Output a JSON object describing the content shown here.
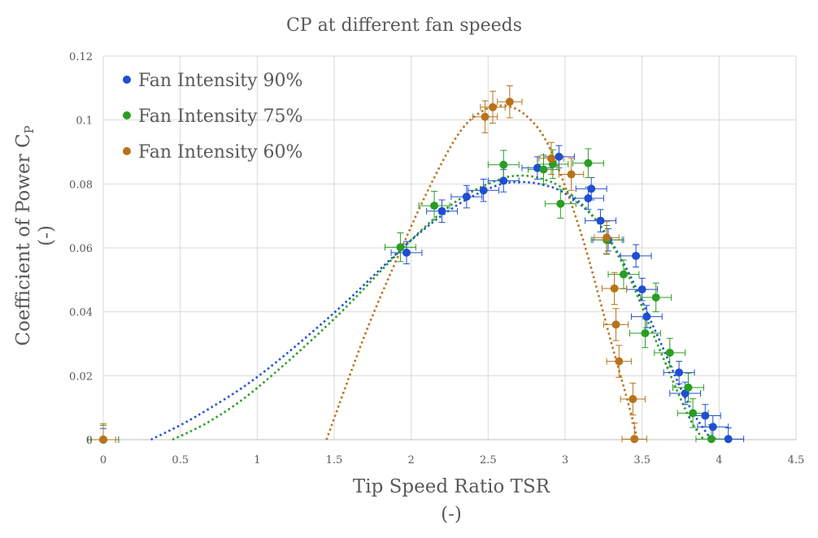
{
  "chart_data": {
    "type": "scatter",
    "title": "CP at different fan speeds",
    "xlabel": "Tip Speed Ratio TSR",
    "xlabel_unit": "(-)",
    "ylabel": "Coefficient of Power C",
    "ylabel_subscript": "P",
    "ylabel_unit": "(-)",
    "xlim": [
      0,
      4.5
    ],
    "ylim": [
      0,
      0.12
    ],
    "x_ticks": [
      "0",
      "0.5",
      "1",
      "1.5",
      "2",
      "2.5",
      "3",
      "3.5",
      "4",
      "4.5"
    ],
    "y_ticks": [
      "0",
      "0.02",
      "0.04",
      "0.06",
      "0.08",
      "0.1",
      "0.12"
    ],
    "grid": true,
    "legend_position": "top-left",
    "trendline_style": "dotted",
    "series": [
      {
        "name": "Fan Intensity 90%",
        "color": "#1f4fd1",
        "x_error": 0.1,
        "y_error": 0.0035,
        "points": [
          [
            0,
            0
          ],
          [
            1.97,
            0.0585
          ],
          [
            2.2,
            0.0715
          ],
          [
            2.36,
            0.076
          ],
          [
            2.47,
            0.078
          ],
          [
            2.6,
            0.081
          ],
          [
            2.82,
            0.085
          ],
          [
            2.96,
            0.0885
          ],
          [
            3.15,
            0.0755
          ],
          [
            3.17,
            0.0785
          ],
          [
            3.23,
            0.0685
          ],
          [
            3.28,
            0.0625
          ],
          [
            3.46,
            0.0575
          ],
          [
            3.5,
            0.047
          ],
          [
            3.53,
            0.0385
          ],
          [
            3.74,
            0.021
          ],
          [
            3.78,
            0.0145
          ],
          [
            3.91,
            0.0075
          ],
          [
            3.96,
            0.004
          ],
          [
            4.06,
            0.0002
          ]
        ],
        "trend": [
          [
            0.31,
            0.0
          ],
          [
            0.6,
            0.0072
          ],
          [
            1.0,
            0.0196
          ],
          [
            1.5,
            0.0397
          ],
          [
            2.0,
            0.0624
          ],
          [
            2.3,
            0.0734
          ],
          [
            2.55,
            0.0794
          ],
          [
            2.7,
            0.0806
          ],
          [
            2.85,
            0.0798
          ],
          [
            3.0,
            0.077
          ],
          [
            3.2,
            0.0687
          ],
          [
            3.4,
            0.0534
          ],
          [
            3.6,
            0.0325
          ],
          [
            3.8,
            0.0111
          ],
          [
            3.95,
            0.0
          ]
        ]
      },
      {
        "name": "Fan Intensity 75%",
        "color": "#2a9d22",
        "x_error": 0.1,
        "y_error": 0.0045,
        "points": [
          [
            0,
            0
          ],
          [
            1.93,
            0.0602
          ],
          [
            2.15,
            0.0732
          ],
          [
            2.6,
            0.086
          ],
          [
            2.86,
            0.0845
          ],
          [
            2.92,
            0.0862
          ],
          [
            2.97,
            0.0738
          ],
          [
            3.15,
            0.0865
          ],
          [
            3.27,
            0.0625
          ],
          [
            3.38,
            0.0517
          ],
          [
            3.52,
            0.0333
          ],
          [
            3.59,
            0.0445
          ],
          [
            3.68,
            0.0272
          ],
          [
            3.8,
            0.0163
          ],
          [
            3.83,
            0.0083
          ],
          [
            3.95,
            0.0002
          ]
        ],
        "trend": [
          [
            0.45,
            0.0
          ],
          [
            0.7,
            0.006
          ],
          [
            1.0,
            0.0162
          ],
          [
            1.5,
            0.0378
          ],
          [
            2.0,
            0.0625
          ],
          [
            2.3,
            0.0748
          ],
          [
            2.55,
            0.081
          ],
          [
            2.7,
            0.0826
          ],
          [
            2.85,
            0.0816
          ],
          [
            3.0,
            0.0781
          ],
          [
            3.2,
            0.0688
          ],
          [
            3.4,
            0.0525
          ],
          [
            3.6,
            0.0298
          ],
          [
            3.8,
            0.0075
          ],
          [
            3.9,
            0.0
          ]
        ]
      },
      {
        "name": "Fan Intensity 60%",
        "color": "#b8731a",
        "x_error": 0.08,
        "y_error": 0.005,
        "points": [
          [
            0,
            0
          ],
          [
            2.48,
            0.101
          ],
          [
            2.53,
            0.104
          ],
          [
            2.64,
            0.1057
          ],
          [
            2.91,
            0.088
          ],
          [
            3.04,
            0.083
          ],
          [
            3.27,
            0.0632
          ],
          [
            3.32,
            0.0473
          ],
          [
            3.33,
            0.036
          ],
          [
            3.35,
            0.0245
          ],
          [
            3.44,
            0.0127
          ],
          [
            3.45,
            0.0002
          ]
        ],
        "trend": [
          [
            1.45,
            0.0
          ],
          [
            1.7,
            0.0329
          ],
          [
            1.9,
            0.0557
          ],
          [
            2.1,
            0.0771
          ],
          [
            2.3,
            0.0951
          ],
          [
            2.45,
            0.1024
          ],
          [
            2.6,
            0.1045
          ],
          [
            2.75,
            0.1012
          ],
          [
            2.9,
            0.0912
          ],
          [
            3.1,
            0.0651
          ],
          [
            3.3,
            0.0304
          ],
          [
            3.42,
            0.0096
          ],
          [
            3.47,
            0.0
          ]
        ]
      }
    ]
  }
}
